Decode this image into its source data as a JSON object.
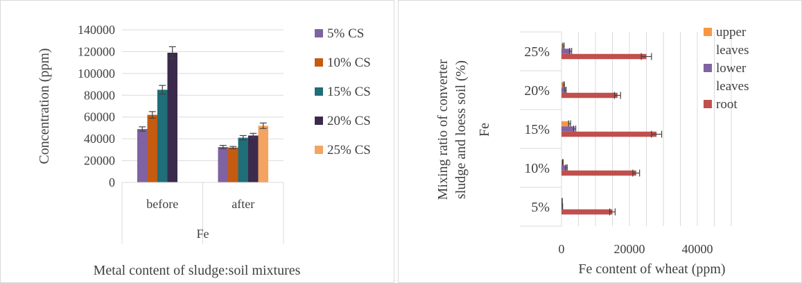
{
  "chart_data": [
    {
      "type": "bar",
      "title": "Metal content of sludge:soil mixtures",
      "ylabel": "Concentration (ppm)",
      "group_label": "Fe",
      "categories": [
        "before",
        "after"
      ],
      "ylim": [
        0,
        140000
      ],
      "yticks": [
        "0",
        "20000",
        "40000",
        "60000",
        "80000",
        "100000",
        "120000",
        "140000"
      ],
      "grid": true,
      "legend_position": "right",
      "series": [
        {
          "name": "5% CS",
          "color": "#7e62a1",
          "values": [
            49000,
            32500
          ],
          "errors": [
            2000,
            1500
          ]
        },
        {
          "name": "10% CS",
          "color": "#c55a11",
          "values": [
            62000,
            32000
          ],
          "errors": [
            3000,
            1000
          ]
        },
        {
          "name": "15% CS",
          "color": "#1f6e78",
          "values": [
            85000,
            41000
          ],
          "errors": [
            4000,
            2000
          ]
        },
        {
          "name": "20% CS",
          "color": "#3b2a4e",
          "values": [
            119000,
            43000
          ],
          "errors": [
            5500,
            2000
          ]
        },
        {
          "name": "25% CS",
          "color": "#f4a460",
          "values": [
            0,
            52000
          ],
          "errors": [
            0,
            2500
          ]
        }
      ]
    },
    {
      "type": "bar",
      "orientation": "horizontal",
      "xlabel": "Fe content of wheat (ppm)",
      "ylabel_lines": [
        "Mixing ratio of converter",
        "sludge and loess soil (%)"
      ],
      "group_label": "Fe",
      "categories": [
        "25%",
        "20%",
        "15%",
        "10%",
        "5%"
      ],
      "xlim": [
        0,
        50000
      ],
      "xticks": [
        "0",
        "20000",
        "40000"
      ],
      "grid": true,
      "legend_position": "right",
      "series": [
        {
          "name": "upper leaves",
          "name_lines": [
            "upper",
            "leaves"
          ],
          "color": "#f79646",
          "values": [
            600,
            700,
            2400,
            400,
            200
          ],
          "errors": [
            200,
            200,
            300,
            100,
            50
          ]
        },
        {
          "name": "lower leaves",
          "name_lines": [
            "lower",
            "leaves"
          ],
          "color": "#8064a2",
          "values": [
            2700,
            1200,
            3900,
            1500,
            300
          ],
          "errors": [
            300,
            200,
            300,
            200,
            50
          ]
        },
        {
          "name": "root",
          "name_lines": [
            "root"
          ],
          "color": "#c0504d",
          "values": [
            25000,
            16500,
            28000,
            22000,
            15000
          ],
          "errors": [
            1500,
            900,
            1500,
            1000,
            800
          ]
        }
      ]
    }
  ]
}
